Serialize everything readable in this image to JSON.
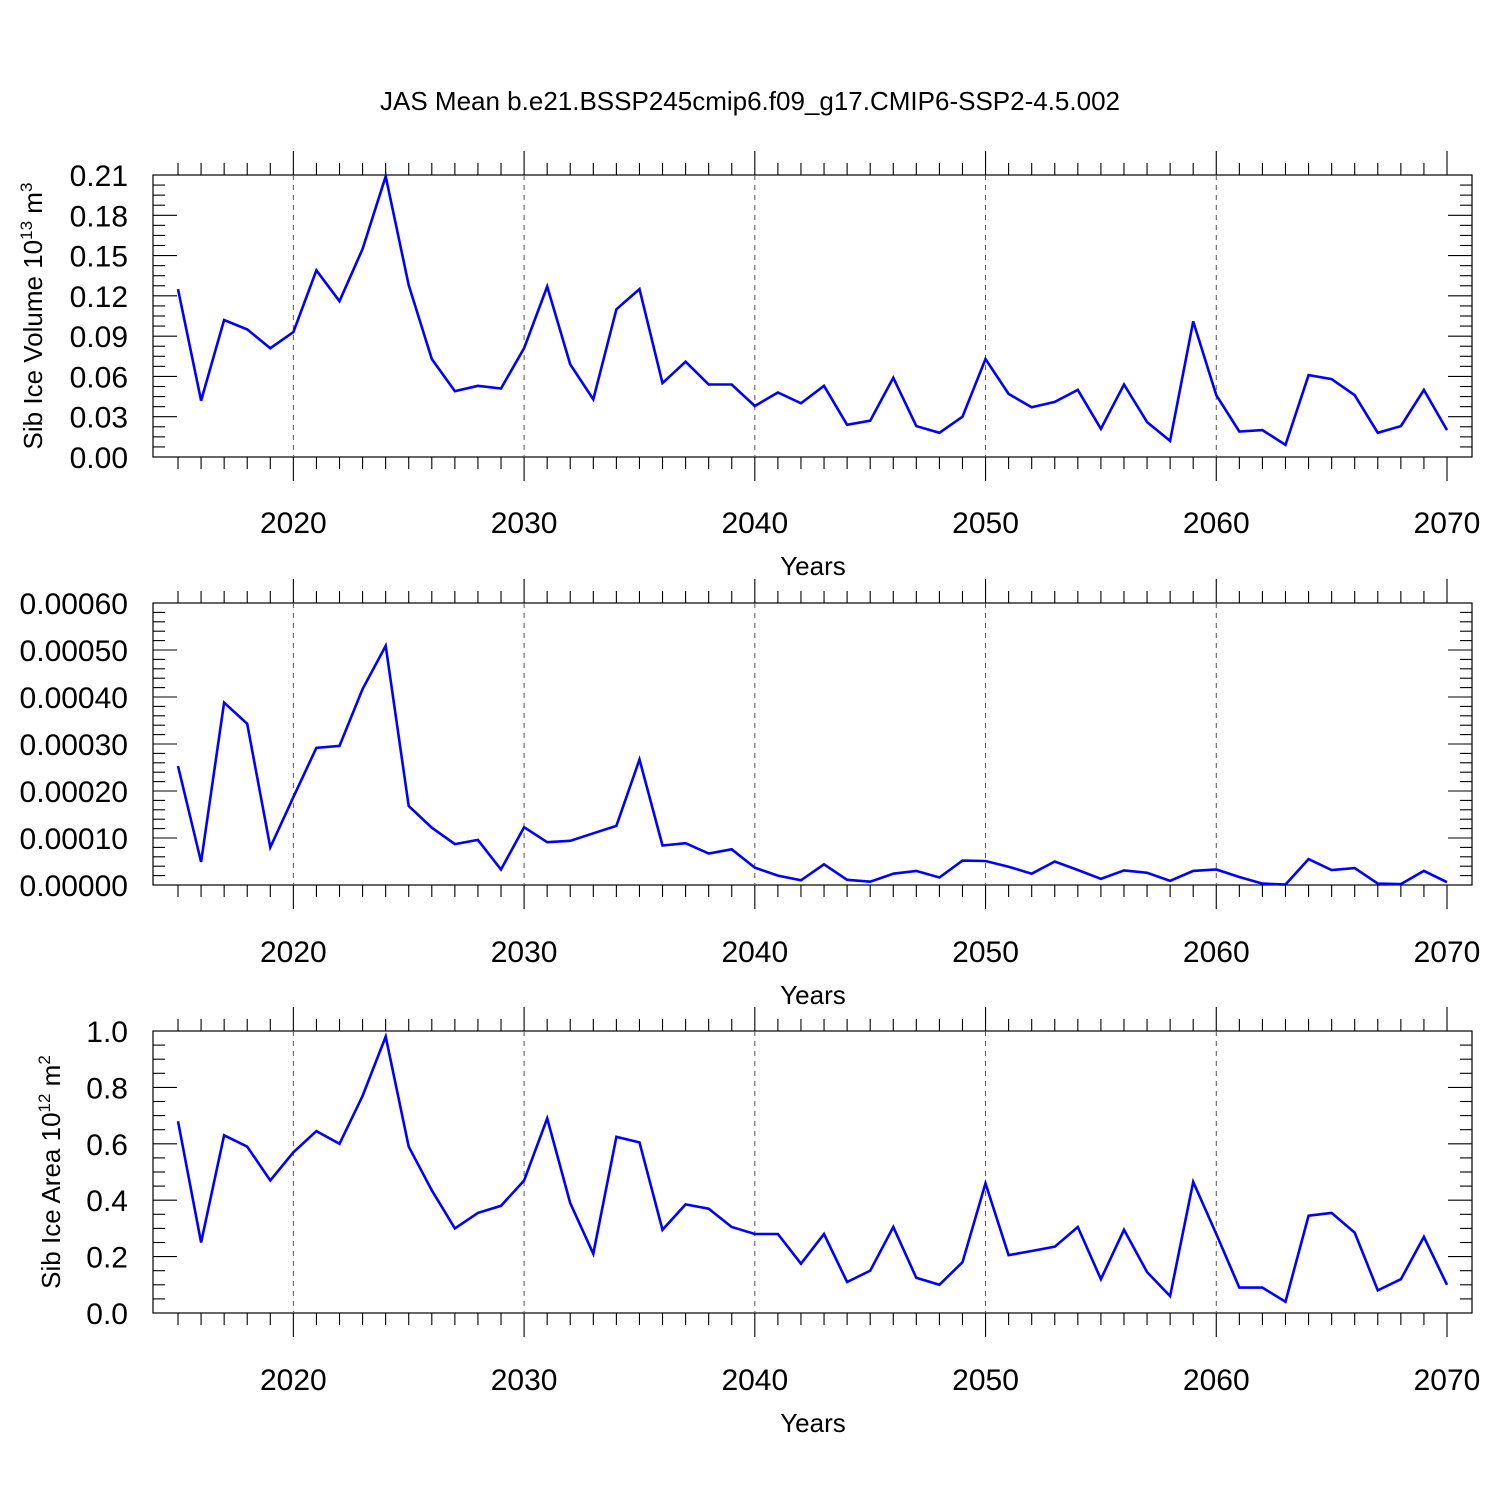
{
  "figure_title": "JAS Mean b.e21.BSSP245cmip6.f09_g17.CMIP6-SSP2-4.5.002",
  "colors": {
    "line": "#0000ff",
    "grid": "#555555",
    "axes": "#000000"
  },
  "chart_data": [
    {
      "type": "line",
      "xlabel": "Years",
      "ylabel_main": "Sib Ice Volume 10",
      "ylabel_exponent": "13",
      "ylabel_unit": "m",
      "ylabel_unit_exponent": "3",
      "xlim": [
        2015,
        2070
      ],
      "ylim": [
        0,
        0.21
      ],
      "x_ticks": [
        2020,
        2030,
        2040,
        2050,
        2060,
        2070
      ],
      "x_tick_labels": [
        "2020",
        "2030",
        "2040",
        "2050",
        "2060",
        "2070"
      ],
      "y_ticks": [
        0,
        0.03,
        0.06,
        0.09,
        0.12,
        0.15,
        0.18,
        0.21
      ],
      "y_tick_labels": [
        "0.00",
        "0.03",
        "0.06",
        "0.09",
        "0.12",
        "0.15",
        "0.18",
        "0.21"
      ],
      "grid": "vertical dashed at major x ticks",
      "x": [
        2015,
        2016,
        2017,
        2018,
        2019,
        2020,
        2021,
        2022,
        2023,
        2024,
        2025,
        2026,
        2027,
        2028,
        2029,
        2030,
        2031,
        2032,
        2033,
        2034,
        2035,
        2036,
        2037,
        2038,
        2039,
        2040,
        2041,
        2042,
        2043,
        2044,
        2045,
        2046,
        2047,
        2048,
        2049,
        2050,
        2051,
        2052,
        2053,
        2054,
        2055,
        2056,
        2057,
        2058,
        2059,
        2060,
        2061,
        2062,
        2063,
        2064,
        2065,
        2066,
        2067,
        2068,
        2069,
        2070
      ],
      "values": [
        0.125,
        0.042,
        0.102,
        0.095,
        0.081,
        0.093,
        0.139,
        0.116,
        0.155,
        0.209,
        0.128,
        0.073,
        0.049,
        0.053,
        0.051,
        0.081,
        0.127,
        0.069,
        0.043,
        0.11,
        0.125,
        0.055,
        0.071,
        0.054,
        0.054,
        0.038,
        0.048,
        0.04,
        0.053,
        0.024,
        0.027,
        0.059,
        0.023,
        0.018,
        0.03,
        0.073,
        0.047,
        0.037,
        0.041,
        0.05,
        0.021,
        0.054,
        0.026,
        0.012,
        0.101,
        0.046,
        0.019,
        0.02,
        0.009,
        0.061,
        0.058,
        0.046,
        0.018,
        0.023,
        0.05,
        0.02
      ]
    },
    {
      "type": "line",
      "xlabel": "Years",
      "xlim": [
        2015,
        2070
      ],
      "ylim": [
        0,
        0.0006
      ],
      "x_ticks": [
        2020,
        2030,
        2040,
        2050,
        2060,
        2070
      ],
      "x_tick_labels": [
        "2020",
        "2030",
        "2040",
        "2050",
        "2060",
        "2070"
      ],
      "y_ticks": [
        0,
        0.0001,
        0.0002,
        0.0003,
        0.0004,
        0.0005,
        0.0006
      ],
      "y_tick_labels": [
        "0.00000",
        "0.00010",
        "0.00020",
        "0.00030",
        "0.00040",
        "0.00050",
        "0.00060"
      ],
      "grid": "vertical dashed at major x ticks",
      "x": [
        2015,
        2016,
        2017,
        2018,
        2019,
        2020,
        2021,
        2022,
        2023,
        2024,
        2025,
        2026,
        2027,
        2028,
        2029,
        2030,
        2031,
        2032,
        2033,
        2034,
        2035,
        2036,
        2037,
        2038,
        2039,
        2040,
        2041,
        2042,
        2043,
        2044,
        2045,
        2046,
        2047,
        2048,
        2049,
        2050,
        2051,
        2052,
        2053,
        2054,
        2055,
        2056,
        2057,
        2058,
        2059,
        2060,
        2061,
        2062,
        2063,
        2064,
        2065,
        2066,
        2067,
        2068,
        2069,
        2070
      ],
      "values": [
        0.000253,
        4.9e-05,
        0.000388,
        0.000343,
        8e-05,
        0.000187,
        0.000292,
        0.000296,
        0.000417,
        0.000509,
        0.000168,
        0.000122,
        8.7e-05,
        9.6e-05,
        3.3e-05,
        0.000123,
        9.1e-05,
        9.4e-05,
        0.00011,
        0.000126,
        0.000267,
        8.4e-05,
        8.9e-05,
        6.7e-05,
        7.6e-05,
        3.7e-05,
        2e-05,
        1e-05,
        4.4e-05,
        1.1e-05,
        7e-06,
        2.4e-05,
        3e-05,
        1.6e-05,
        5.2e-05,
        5.1e-05,
        3.9e-05,
        2.4e-05,
        5e-05,
        3.2e-05,
        1.3e-05,
        3.1e-05,
        2.6e-05,
        9e-06,
        3e-05,
        3.3e-05,
        1.7e-05,
        3e-06,
        1e-06,
        5.5e-05,
        3.2e-05,
        3.6e-05,
        3e-06,
        2e-06,
        3e-05,
        6e-06
      ]
    },
    {
      "type": "line",
      "xlabel": "Years",
      "ylabel_main": "Sib Ice Area 10",
      "ylabel_exponent": "12",
      "ylabel_unit": "m",
      "ylabel_unit_exponent": "2",
      "xlim": [
        2015,
        2070
      ],
      "ylim": [
        0,
        1.0
      ],
      "x_ticks": [
        2020,
        2030,
        2040,
        2050,
        2060,
        2070
      ],
      "x_tick_labels": [
        "2020",
        "2030",
        "2040",
        "2050",
        "2060",
        "2070"
      ],
      "y_ticks": [
        0,
        0.2,
        0.4,
        0.6,
        0.8,
        1.0
      ],
      "y_tick_labels": [
        "0.0",
        "0.2",
        "0.4",
        "0.6",
        "0.8",
        "1.0"
      ],
      "grid": "vertical dashed at major x ticks",
      "x": [
        2015,
        2016,
        2017,
        2018,
        2019,
        2020,
        2021,
        2022,
        2023,
        2024,
        2025,
        2026,
        2027,
        2028,
        2029,
        2030,
        2031,
        2032,
        2033,
        2034,
        2035,
        2036,
        2037,
        2038,
        2039,
        2040,
        2041,
        2042,
        2043,
        2044,
        2045,
        2046,
        2047,
        2048,
        2049,
        2050,
        2051,
        2052,
        2053,
        2054,
        2055,
        2056,
        2057,
        2058,
        2059,
        2060,
        2061,
        2062,
        2063,
        2064,
        2065,
        2066,
        2067,
        2068,
        2069,
        2070
      ],
      "values": [
        0.68,
        0.25,
        0.63,
        0.59,
        0.47,
        0.57,
        0.645,
        0.6,
        0.77,
        0.98,
        0.59,
        0.435,
        0.3,
        0.355,
        0.38,
        0.47,
        0.69,
        0.39,
        0.21,
        0.625,
        0.605,
        0.295,
        0.385,
        0.37,
        0.305,
        0.28,
        0.28,
        0.175,
        0.28,
        0.11,
        0.15,
        0.305,
        0.125,
        0.1,
        0.18,
        0.46,
        0.205,
        0.22,
        0.235,
        0.305,
        0.12,
        0.295,
        0.145,
        0.06,
        0.465,
        0.28,
        0.09,
        0.09,
        0.04,
        0.345,
        0.355,
        0.285,
        0.08,
        0.12,
        0.27,
        0.1
      ]
    }
  ]
}
